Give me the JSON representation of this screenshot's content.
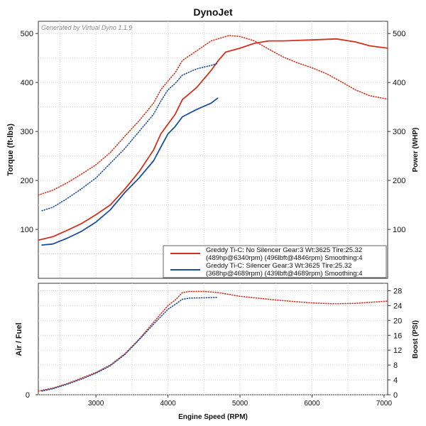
{
  "title": "DynoJet",
  "watermark": "Generated by Virtual Dyno 1.1.9",
  "colors": {
    "red": "#d6301c",
    "blue": "#1a4fa0",
    "grid": "#cfcfcf"
  },
  "axes": {
    "xlabel": "Engine Speed (RPM)",
    "top_left_label": "Torque (ft-lbs)",
    "top_right_label": "Power (WHP)",
    "bottom_left_label": "Air / Fuel",
    "bottom_right_label": "Boost (PSI)",
    "x_ticks": [
      "3000",
      "4000",
      "5000",
      "6000",
      "7000"
    ],
    "top_ticks": [
      "100",
      "200",
      "300",
      "400",
      "500"
    ],
    "boost_ticks": [
      "0",
      "4",
      "8",
      "12",
      "16",
      "20",
      "24",
      "28"
    ],
    "af_ticks": [
      "0"
    ]
  },
  "legend": {
    "line1a": "Greddy Ti-C: No Silencer Gear:3 Wt:3625 Tire:25.32",
    "line1b": "(489hp@6340rpm) (496lbft@4846rpm) Smoothing:4",
    "line2a": "Greddy Ti-C: Silencer Gear:3 Wt:3625 Tire:25.32",
    "line2b": "(368hp@4689rpm) (439lbft@4689rpm) Smoothing:4"
  },
  "chart_data": [
    {
      "type": "line",
      "title": "DynoJet",
      "xlabel": "Engine Speed (RPM)",
      "ylabel": "Torque (ft-lbs)",
      "y2label": "Power (WHP)",
      "xlim": [
        2200,
        7050
      ],
      "ylim": [
        0,
        525
      ],
      "series": [
        {
          "name": "Greddy Ti-C: No Silencer Gear:3 Wt:3625 Tire:25.32 - Power",
          "color": "#d6301c",
          "style": "solid",
          "x": [
            2200,
            2400,
            2600,
            2800,
            3000,
            3200,
            3400,
            3600,
            3800,
            3900,
            4000,
            4100,
            4200,
            4400,
            4600,
            4700,
            4800,
            5000,
            5200,
            5400,
            5600,
            5800,
            6000,
            6340,
            6600,
            6800,
            7050
          ],
          "y": [
            78,
            85,
            98,
            112,
            130,
            150,
            182,
            218,
            262,
            295,
            315,
            335,
            365,
            390,
            425,
            445,
            462,
            470,
            480,
            485,
            485,
            486,
            487,
            489,
            483,
            475,
            470
          ]
        },
        {
          "name": "Greddy Ti-C: No Silencer Gear:3 Wt:3625 Tire:25.32 - Torque",
          "color": "#d6301c",
          "style": "dotted",
          "x": [
            2200,
            2400,
            2600,
            2800,
            3000,
            3200,
            3400,
            3600,
            3800,
            3900,
            4000,
            4100,
            4200,
            4400,
            4600,
            4846,
            5000,
            5200,
            5400,
            5600,
            5800,
            6000,
            6200,
            6400,
            6600,
            6800,
            7050
          ],
          "y": [
            170,
            180,
            195,
            213,
            232,
            257,
            290,
            322,
            358,
            385,
            403,
            420,
            445,
            465,
            485,
            496,
            494,
            485,
            468,
            452,
            440,
            430,
            418,
            402,
            385,
            373,
            366
          ]
        },
        {
          "name": "Greddy Ti-C: Silencer Gear:3 Wt:3625 Tire:25.32 - Power",
          "color": "#1a4fa0",
          "style": "solid",
          "x": [
            2250,
            2400,
            2600,
            2800,
            3000,
            3200,
            3400,
            3600,
            3800,
            3900,
            4000,
            4100,
            4200,
            4400,
            4600,
            4689
          ],
          "y": [
            68,
            70,
            82,
            96,
            115,
            140,
            175,
            205,
            240,
            268,
            295,
            310,
            330,
            345,
            358,
            368
          ]
        },
        {
          "name": "Greddy Ti-C: Silencer Gear:3 Wt:3625 Tire:25.32 - Torque",
          "color": "#1a4fa0",
          "style": "dotted",
          "x": [
            2250,
            2400,
            2600,
            2800,
            3000,
            3200,
            3400,
            3600,
            3800,
            3900,
            4000,
            4100,
            4200,
            4400,
            4600,
            4689
          ],
          "y": [
            138,
            145,
            163,
            183,
            205,
            235,
            265,
            300,
            335,
            362,
            385,
            398,
            415,
            428,
            435,
            439
          ]
        }
      ]
    },
    {
      "type": "line",
      "xlabel": "Engine Speed (RPM)",
      "ylabel": "Air / Fuel",
      "y2label": "Boost (PSI)",
      "xlim": [
        2200,
        7050
      ],
      "ylim": [
        0,
        30
      ],
      "series": [
        {
          "name": "Greddy Ti-C: No Silencer Gear:3 Wt:3625 Tire:25.32 - Boost",
          "color": "#d6301c",
          "style": "dotted",
          "x": [
            2200,
            2400,
            2600,
            2800,
            3000,
            3200,
            3400,
            3600,
            3800,
            4000,
            4100,
            4200,
            4300,
            4500,
            4700,
            5000,
            5500,
            6000,
            6300,
            6600,
            7050
          ],
          "y": [
            1,
            1.8,
            3,
            4.5,
            6,
            8,
            11,
            15,
            19.5,
            24,
            25.5,
            27.5,
            27.8,
            27.8,
            27.5,
            26.5,
            25.5,
            24.7,
            24.5,
            24.6,
            25.2
          ]
        },
        {
          "name": "Greddy Ti-C: Silencer Gear:3 Wt:3625 Tire:25.32 - Boost",
          "color": "#1a4fa0",
          "style": "dotted",
          "x": [
            2250,
            2400,
            2600,
            2800,
            3000,
            3200,
            3400,
            3600,
            3800,
            4000,
            4100,
            4200,
            4300,
            4500,
            4689
          ],
          "y": [
            1,
            1.6,
            2.8,
            4.2,
            5.8,
            7.8,
            10.8,
            14.8,
            19,
            23,
            24.3,
            25.7,
            26,
            26.1,
            26.2
          ]
        }
      ]
    }
  ]
}
